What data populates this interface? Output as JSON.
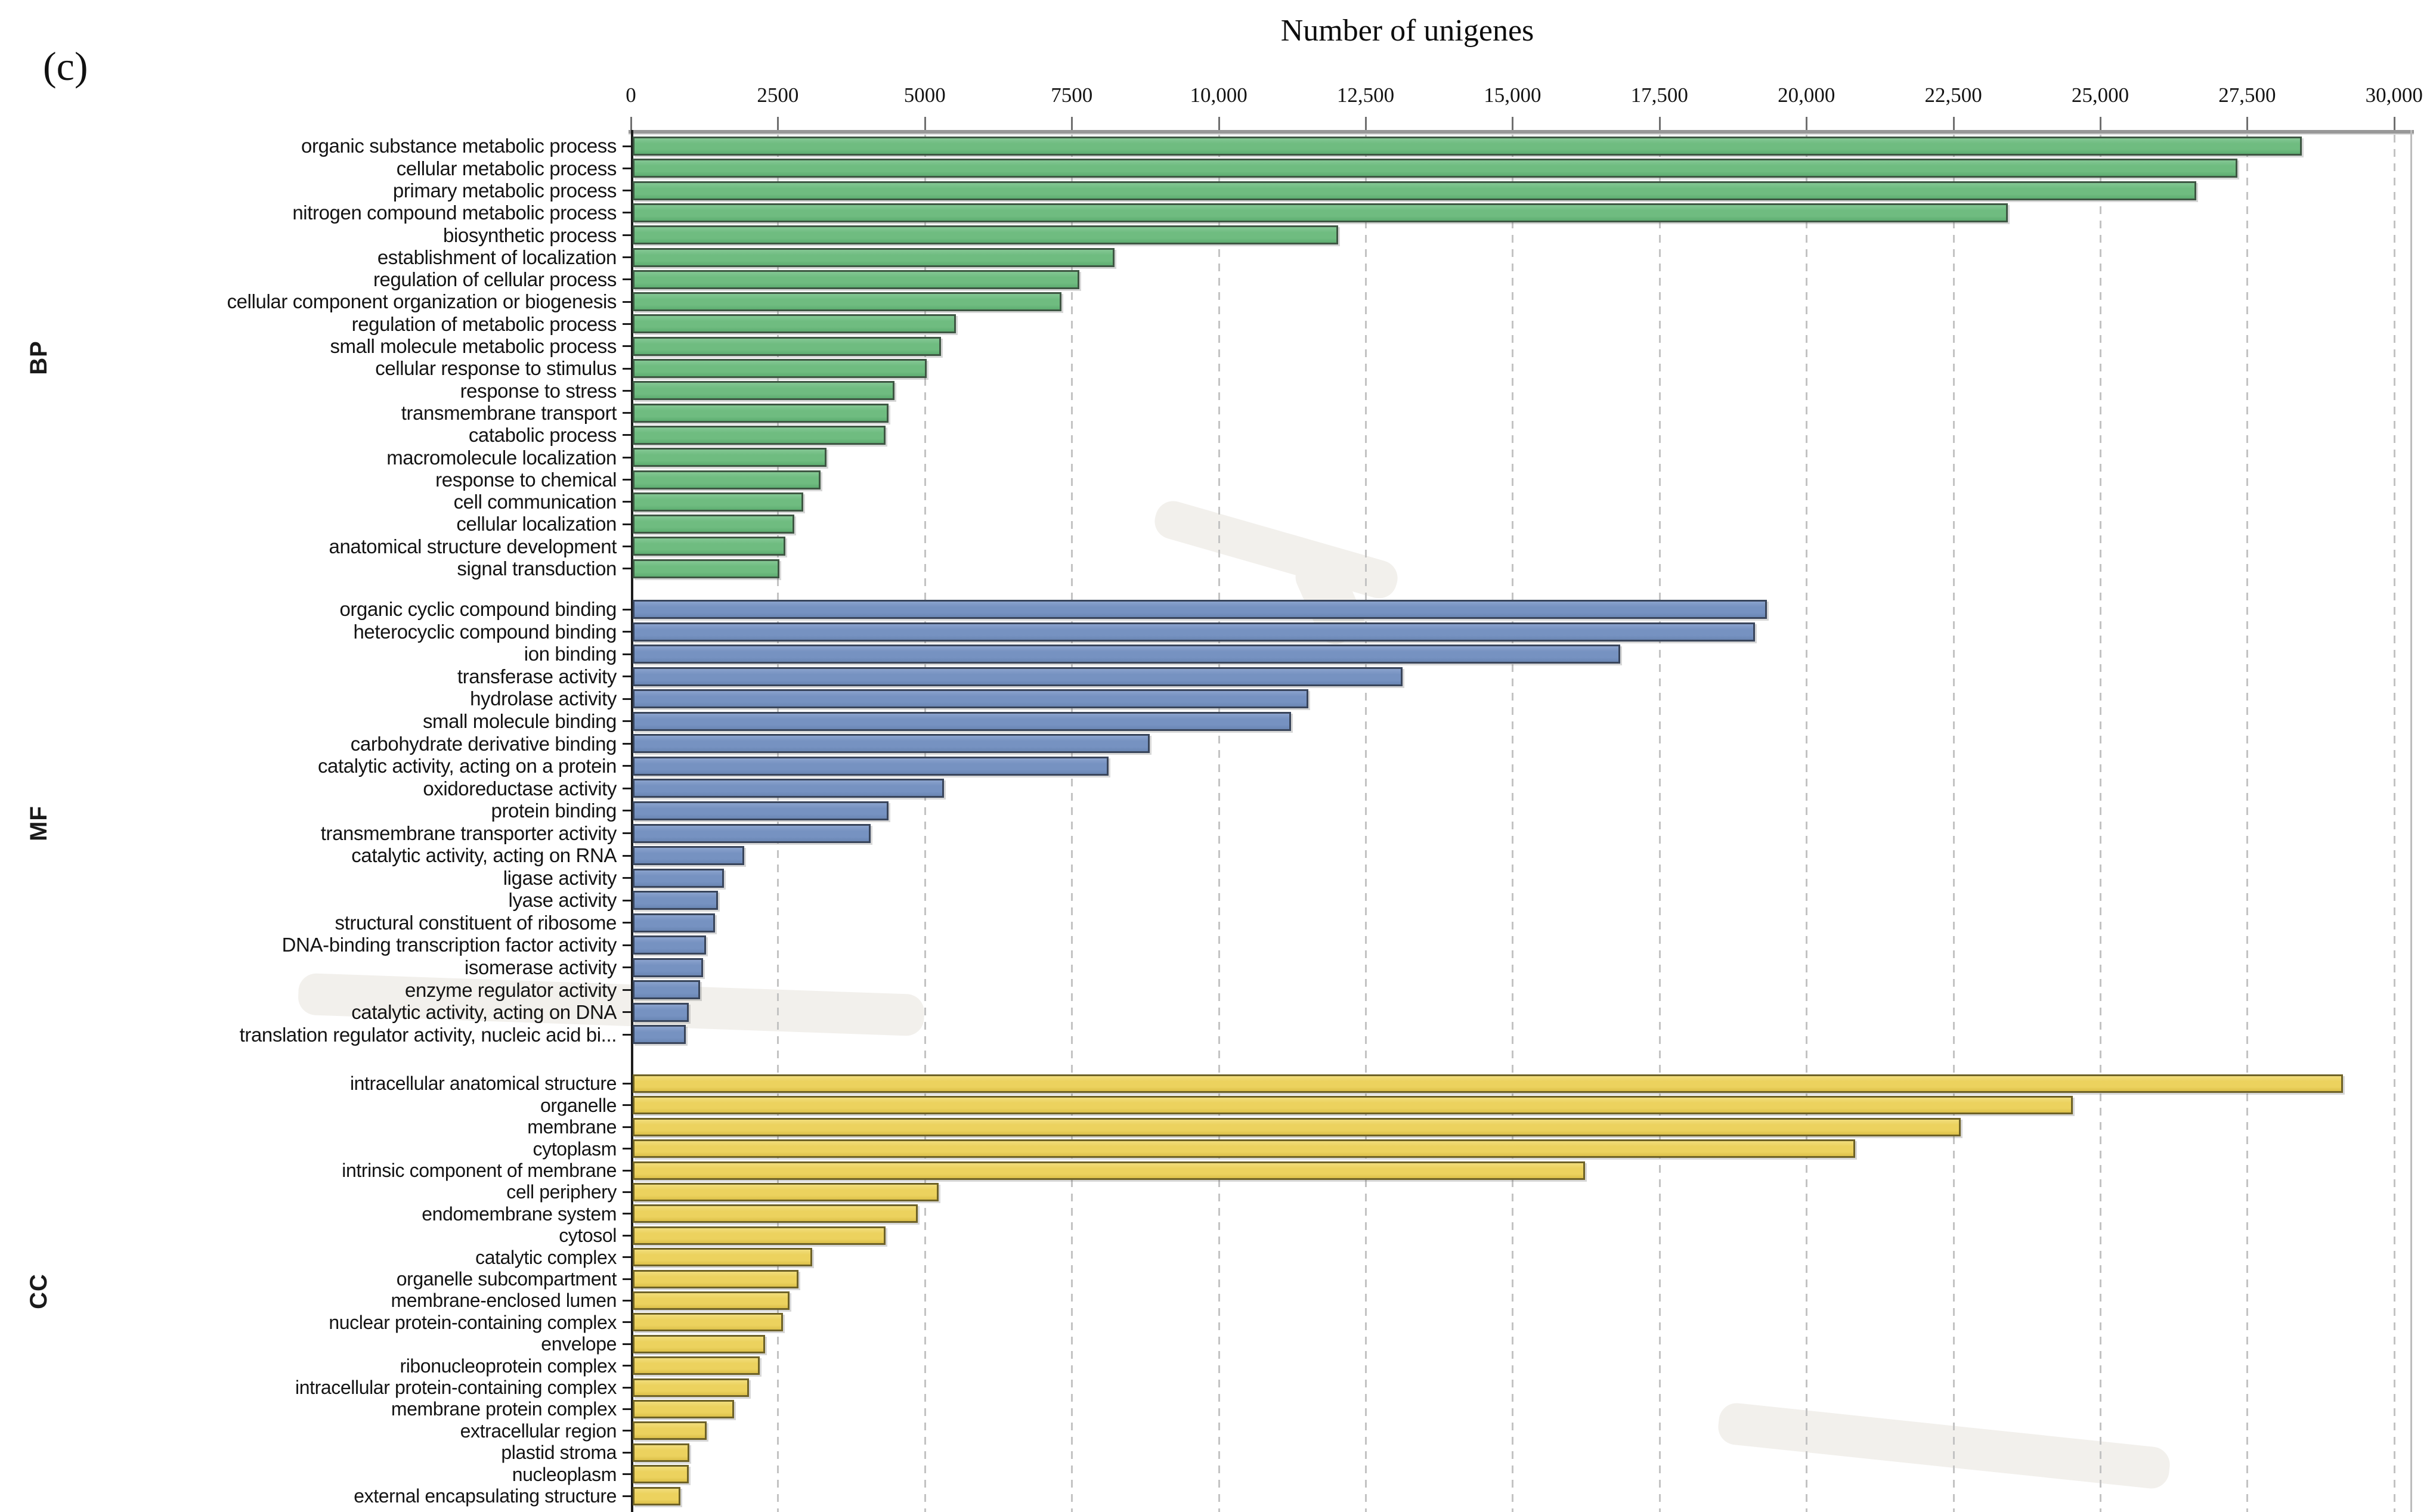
{
  "figure_label": "(c)",
  "chart_data": {
    "type": "bar",
    "orientation": "horizontal",
    "title": "Number of unigenes",
    "xlabel": "Number of unigenes",
    "xlim": [
      0,
      30000
    ],
    "grid": "dashed-vertical",
    "legend_position": "none",
    "x_ticks": [
      {
        "value": 0,
        "label": "0"
      },
      {
        "value": 2500,
        "label": "2500"
      },
      {
        "value": 5000,
        "label": "5000"
      },
      {
        "value": 7500,
        "label": "7500"
      },
      {
        "value": 10000,
        "label": "10,000"
      },
      {
        "value": 12500,
        "label": "12,500"
      },
      {
        "value": 15000,
        "label": "15,000"
      },
      {
        "value": 17500,
        "label": "17,500"
      },
      {
        "value": 20000,
        "label": "20,000"
      },
      {
        "value": 22500,
        "label": "22,500"
      },
      {
        "value": 25000,
        "label": "25,000"
      },
      {
        "value": 27500,
        "label": "27,500"
      },
      {
        "value": 30000,
        "label": "30,000"
      }
    ],
    "groups": [
      {
        "name": "BP",
        "color": "#6fbc80",
        "color_light": "#83c793",
        "color_dark": "#5dad70",
        "border_color": "#3e5743",
        "categories": [
          "organic substance metabolic process",
          "cellular metabolic process",
          "primary metabolic process",
          "nitrogen compound metabolic process",
          "biosynthetic process",
          "establishment of localization",
          "regulation of cellular process",
          "cellular component organization or biogenesis",
          "regulation of metabolic process",
          "small molecule metabolic process",
          "cellular response to stimulus",
          "response to stress",
          "transmembrane transport",
          "catabolic process",
          "macromolecule localization",
          "response to chemical",
          "cell communication",
          "cellular localization",
          "anatomical structure development",
          "signal transduction"
        ],
        "values": [
          28400,
          27300,
          26600,
          23400,
          12000,
          8200,
          7600,
          7300,
          5500,
          5250,
          5000,
          4450,
          4350,
          4300,
          3300,
          3200,
          2900,
          2750,
          2600,
          2500
        ]
      },
      {
        "name": "MF",
        "color": "#7692c1",
        "color_light": "#8aa2cd",
        "color_dark": "#6a86b3",
        "border_color": "#39455b",
        "categories": [
          "organic cyclic compound binding",
          "heterocyclic compound binding",
          "ion binding",
          "transferase activity",
          "hydrolase activity",
          "small molecule binding",
          "carbohydrate derivative binding",
          "catalytic activity, acting on a protein",
          "oxidoreductase activity",
          "protein binding",
          "transmembrane transporter activity",
          "catalytic activity, acting on RNA",
          "ligase activity",
          "lyase activity",
          "structural constituent of ribosome",
          "DNA-binding transcription factor activity",
          "isomerase activity",
          "enzyme regulator activity",
          "catalytic activity, acting on DNA",
          "translation regulator activity, nucleic acid bi..."
        ],
        "values": [
          19300,
          19100,
          16800,
          13100,
          11500,
          11200,
          8800,
          8100,
          5300,
          4350,
          4050,
          1900,
          1550,
          1450,
          1400,
          1250,
          1200,
          1150,
          950,
          900
        ]
      },
      {
        "name": "CC",
        "color": "#ecd25e",
        "color_light": "#f1dd7b",
        "color_dark": "#dcc049",
        "border_color": "#6e6227",
        "categories": [
          "intracellular anatomical structure",
          "organelle",
          "membrane",
          "cytoplasm",
          "intrinsic component of membrane",
          "cell periphery",
          "endomembrane system",
          "cytosol",
          "catalytic complex",
          "organelle subcompartment",
          "membrane-enclosed lumen",
          "nuclear protein-containing complex",
          "envelope",
          "ribonucleoprotein complex",
          "intracellular protein-containing complex",
          "membrane protein complex",
          "extracellular region",
          "plastid stroma",
          "nucleoplasm",
          "external encapsulating structure"
        ],
        "values": [
          29100,
          24500,
          22600,
          20800,
          16200,
          5200,
          4850,
          4300,
          3050,
          2820,
          2670,
          2560,
          2250,
          2160,
          1980,
          1720,
          1260,
          960,
          950,
          810
        ]
      }
    ]
  }
}
